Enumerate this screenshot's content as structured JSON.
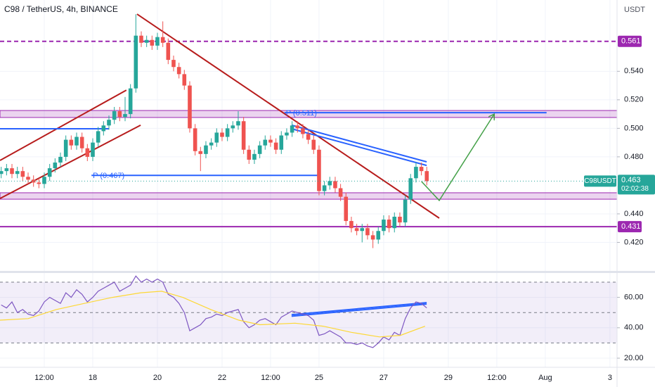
{
  "header": {
    "title": "C98 / TetherUS, 4h, BINANCE",
    "currency": "USDT"
  },
  "chart_data": [
    {
      "type": "candlestick",
      "up_color": "#26a69a",
      "down_color": "#ef5350",
      "xlim": [
        15.13,
        34.22
      ],
      "ylim": [
        0.4,
        0.59
      ],
      "xticks": [
        {
          "value": 16.5,
          "label": "12:00"
        },
        18,
        20,
        22,
        {
          "value": 23.5,
          "label": "12:00"
        },
        25,
        27,
        29,
        {
          "value": 30.5,
          "label": "12:00"
        },
        {
          "value": 32,
          "label": "Aug"
        },
        {
          "value": 34,
          "label": "3"
        }
      ],
      "yticks": [
        {
          "value": 0.54,
          "label": "0.540"
        },
        {
          "value": 0.52,
          "label": "0.520"
        },
        {
          "value": 0.5,
          "label": "0.500"
        },
        {
          "value": 0.48,
          "label": "0.480"
        },
        {
          "value": 0.44,
          "label": "0.440"
        },
        {
          "value": 0.42,
          "label": "0.420"
        }
      ],
      "x": [
        15.167,
        15.333,
        15.5,
        15.667,
        15.833,
        16,
        16.167,
        16.333,
        16.5,
        16.667,
        16.833,
        17,
        17.167,
        17.333,
        17.5,
        17.667,
        17.833,
        18,
        18.167,
        18.333,
        18.5,
        18.667,
        18.833,
        19,
        19.167,
        19.333,
        19.5,
        19.667,
        19.833,
        20,
        20.167,
        20.333,
        20.5,
        20.667,
        20.833,
        21,
        21.167,
        21.333,
        21.5,
        21.667,
        21.833,
        22,
        22.167,
        22.333,
        22.5,
        22.667,
        22.833,
        23,
        23.167,
        23.333,
        23.5,
        23.667,
        23.833,
        24,
        24.167,
        24.333,
        24.5,
        24.667,
        24.833,
        25,
        25.167,
        25.333,
        25.5,
        25.667,
        25.833,
        26,
        26.167,
        26.333,
        26.5,
        26.667,
        26.833,
        27,
        27.167,
        27.333,
        27.5,
        27.667,
        27.833,
        28,
        28.167,
        28.333
      ],
      "open": [
        0.468,
        0.47,
        0.472,
        0.468,
        0.47,
        0.466,
        0.464,
        0.462,
        0.461,
        0.466,
        0.472,
        0.476,
        0.48,
        0.492,
        0.488,
        0.494,
        0.486,
        0.48,
        0.49,
        0.498,
        0.502,
        0.506,
        0.512,
        0.508,
        0.51,
        0.528,
        0.565,
        0.56,
        0.562,
        0.558,
        0.564,
        0.56,
        0.548,
        0.543,
        0.538,
        0.53,
        0.5,
        0.484,
        0.482,
        0.488,
        0.49,
        0.497,
        0.494,
        0.5,
        0.502,
        0.505,
        0.485,
        0.478,
        0.482,
        0.488,
        0.492,
        0.49,
        0.485,
        0.495,
        0.497,
        0.502,
        0.5,
        0.496,
        0.492,
        0.485,
        0.456,
        0.46,
        0.463,
        0.458,
        0.452,
        0.435,
        0.43,
        0.428,
        0.43,
        0.425,
        0.422,
        0.428,
        0.436,
        0.43,
        0.438,
        0.434,
        0.45,
        0.465,
        0.473,
        0.47
      ],
      "high": [
        0.473,
        0.475,
        0.475,
        0.473,
        0.473,
        0.469,
        0.467,
        0.465,
        0.469,
        0.475,
        0.479,
        0.483,
        0.495,
        0.495,
        0.497,
        0.497,
        0.489,
        0.493,
        0.501,
        0.505,
        0.509,
        0.515,
        0.515,
        0.522,
        0.531,
        0.58,
        0.568,
        0.565,
        0.565,
        0.567,
        0.575,
        0.563,
        0.551,
        0.546,
        0.541,
        0.533,
        0.503,
        0.487,
        0.491,
        0.493,
        0.5,
        0.5,
        0.503,
        0.505,
        0.512,
        0.508,
        0.488,
        0.485,
        0.491,
        0.495,
        0.495,
        0.493,
        0.498,
        0.5,
        0.505,
        0.505,
        0.503,
        0.499,
        0.495,
        0.488,
        0.463,
        0.466,
        0.466,
        0.461,
        0.455,
        0.438,
        0.433,
        0.433,
        0.433,
        0.428,
        0.431,
        0.439,
        0.439,
        0.441,
        0.441,
        0.453,
        0.468,
        0.476,
        0.476,
        0.473
      ],
      "low": [
        0.465,
        0.467,
        0.465,
        0.465,
        0.463,
        0.461,
        0.459,
        0.458,
        0.458,
        0.463,
        0.469,
        0.473,
        0.477,
        0.485,
        0.485,
        0.483,
        0.477,
        0.477,
        0.487,
        0.495,
        0.499,
        0.503,
        0.505,
        0.505,
        0.507,
        0.525,
        0.557,
        0.557,
        0.555,
        0.555,
        0.557,
        0.545,
        0.54,
        0.535,
        0.527,
        0.497,
        0.481,
        0.47,
        0.479,
        0.485,
        0.487,
        0.491,
        0.491,
        0.497,
        0.499,
        0.482,
        0.475,
        0.475,
        0.479,
        0.485,
        0.487,
        0.482,
        0.482,
        0.492,
        0.494,
        0.497,
        0.493,
        0.489,
        0.482,
        0.453,
        0.453,
        0.457,
        0.455,
        0.449,
        0.432,
        0.427,
        0.425,
        0.42,
        0.422,
        0.416,
        0.419,
        0.425,
        0.427,
        0.427,
        0.431,
        0.431,
        0.447,
        0.462,
        0.467,
        0.46
      ],
      "close": [
        0.47,
        0.472,
        0.468,
        0.47,
        0.466,
        0.464,
        0.462,
        0.461,
        0.466,
        0.472,
        0.476,
        0.48,
        0.492,
        0.488,
        0.494,
        0.486,
        0.48,
        0.49,
        0.498,
        0.502,
        0.506,
        0.512,
        0.508,
        0.51,
        0.528,
        0.565,
        0.56,
        0.562,
        0.558,
        0.564,
        0.56,
        0.548,
        0.543,
        0.538,
        0.53,
        0.5,
        0.484,
        0.482,
        0.488,
        0.49,
        0.497,
        0.494,
        0.5,
        0.502,
        0.505,
        0.485,
        0.478,
        0.482,
        0.488,
        0.492,
        0.49,
        0.485,
        0.495,
        0.497,
        0.502,
        0.5,
        0.496,
        0.492,
        0.485,
        0.456,
        0.46,
        0.463,
        0.458,
        0.452,
        0.435,
        0.43,
        0.428,
        0.43,
        0.425,
        0.422,
        0.428,
        0.436,
        0.43,
        0.438,
        0.434,
        0.45,
        0.465,
        0.473,
        0.47,
        0.463
      ],
      "zones": [
        {
          "lo": 0.5076,
          "hi": 0.5125,
          "color": "#9c27b0"
        },
        {
          "lo": 0.4503,
          "hi": 0.4548,
          "color": "#9c27b0"
        }
      ],
      "levels": [
        {
          "value": 0.561,
          "color": "#9c27b0",
          "dashed": true
        },
        {
          "value": 0.431,
          "color": "#9c27b0",
          "dashed": false
        }
      ],
      "last": {
        "value": 0.463,
        "name": "C98USDT",
        "countdown": "02:02:38",
        "color": "#26a69a"
      },
      "drawings": [
        {
          "color": "#b71c1c",
          "x": [
            15.13,
            19.04
          ],
          "y": [
            0.4775,
            0.5268
          ]
        },
        {
          "color": "#b71c1c",
          "x": [
            15.13,
            19.48
          ],
          "y": [
            0.4508,
            0.5022
          ]
        },
        {
          "color": "#b71c1c",
          "x": [
            19.37,
            28.72
          ],
          "y": [
            0.5801,
            0.437
          ]
        },
        {
          "color": "#2962ff",
          "x": [
            15.13,
            18.5
          ],
          "y": [
            0.4997,
            0.4997
          ]
        },
        {
          "color": "#2962ff",
          "x": [
            17.96,
            24.96
          ],
          "y": [
            0.467,
            0.467
          ],
          "label": "P (0.467)"
        },
        {
          "color": "#2962ff",
          "x": [
            23.93,
            32.04
          ],
          "y": [
            0.511,
            0.511
          ],
          "label": "P (0.511)"
        },
        {
          "color": "#2962ff",
          "x": [
            24.15,
            28.33
          ],
          "y": [
            0.5022,
            0.4765
          ]
        },
        {
          "color": "#2962ff",
          "x": [
            24.15,
            28.33
          ],
          "y": [
            0.4997,
            0.474
          ]
        },
        {
          "color": "#43a047",
          "x": [
            28.17,
            28.72,
            30.41
          ],
          "y": [
            0.4627,
            0.4494,
            0.5096
          ],
          "arrow": true
        }
      ]
    },
    {
      "type": "line",
      "xlim": [
        15.13,
        34.22
      ],
      "ylim": [
        14,
        76
      ],
      "yticks": [
        {
          "value": 60,
          "label": "60.00"
        },
        {
          "value": 40,
          "label": "40.00"
        },
        {
          "value": 20,
          "label": "20.00"
        }
      ],
      "band": [
        30,
        70
      ],
      "hlines": [
        70,
        50,
        30
      ],
      "series": [
        {
          "color": "#7e57c2",
          "x": [
            15.167,
            15.333,
            15.5,
            15.667,
            15.833,
            16,
            16.167,
            16.333,
            16.5,
            16.667,
            16.833,
            17,
            17.167,
            17.333,
            17.5,
            17.667,
            17.833,
            18,
            18.167,
            18.333,
            18.5,
            18.667,
            18.833,
            19,
            19.167,
            19.333,
            19.5,
            19.667,
            19.833,
            20,
            20.167,
            20.333,
            20.5,
            20.667,
            20.833,
            21,
            21.167,
            21.333,
            21.5,
            21.667,
            21.833,
            22,
            22.167,
            22.333,
            22.5,
            22.667,
            22.833,
            23,
            23.167,
            23.333,
            23.5,
            23.667,
            23.833,
            24,
            24.167,
            24.333,
            24.5,
            24.667,
            24.833,
            25,
            25.167,
            25.333,
            25.5,
            25.667,
            25.833,
            26,
            26.167,
            26.333,
            26.5,
            26.667,
            26.833,
            27,
            27.167,
            27.333,
            27.5,
            27.667,
            27.833,
            28,
            28.167,
            28.333
          ],
          "values": [
            55,
            53,
            57,
            50,
            52,
            49,
            48,
            51,
            57,
            60,
            58,
            56,
            63,
            60,
            65,
            62,
            57,
            60,
            64,
            66,
            68,
            70,
            64,
            66,
            68,
            74,
            70,
            72,
            70,
            72,
            70,
            62,
            60,
            56,
            50,
            38,
            40,
            42,
            46,
            47,
            49,
            48,
            50,
            51,
            52,
            44,
            40,
            42,
            45,
            46,
            44,
            42,
            47,
            49,
            51,
            50,
            49,
            48,
            45,
            35,
            36,
            38,
            36,
            34,
            30,
            30,
            29,
            30,
            28,
            27,
            30,
            34,
            32,
            37,
            35,
            46,
            53,
            57,
            56,
            53
          ]
        },
        {
          "color": "#fdd835",
          "x": [
            15.13,
            16.0,
            16.87,
            17.74,
            18.61,
            19.48,
            20.13,
            20.78,
            21.65,
            22.52,
            23.17,
            24.26,
            25.13,
            26.0,
            26.87,
            27.52,
            28.28
          ],
          "values": [
            45,
            46,
            52,
            56,
            60,
            63,
            64,
            60,
            52,
            45,
            42,
            43,
            41,
            37,
            34,
            35,
            41
          ]
        }
      ],
      "drawings": [
        {
          "color": "#2962ff",
          "x": [
            24.15,
            28.33
          ],
          "y": [
            48.6,
            56.5
          ]
        },
        {
          "color": "#2962ff",
          "x": [
            24.15,
            28.33
          ],
          "y": [
            47.6,
            55.6
          ]
        }
      ]
    }
  ]
}
